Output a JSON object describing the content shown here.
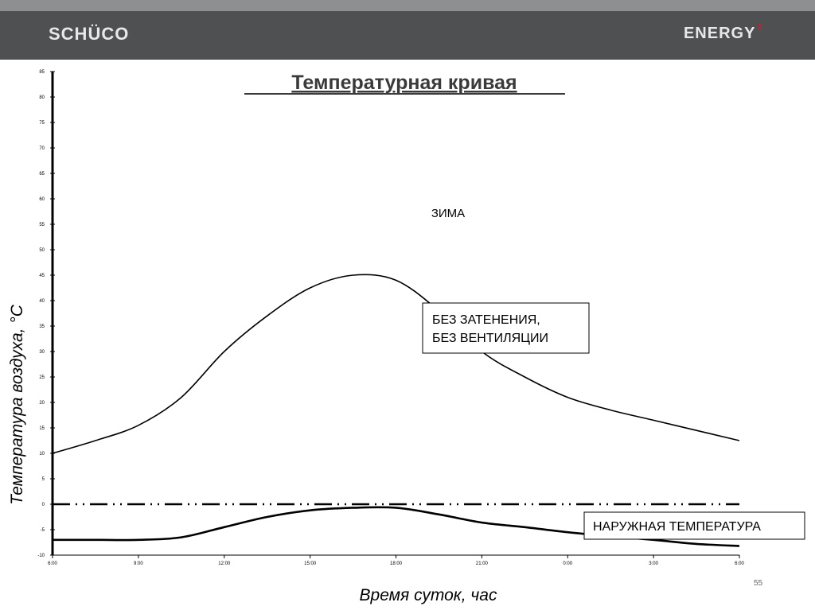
{
  "header": {
    "brand_left": "SCHÜCO",
    "brand_right": "ENERGY",
    "brand_right_sup": "2"
  },
  "page_number": "55",
  "chart_data": {
    "type": "line",
    "title": "Температурная кривая",
    "xlabel": "Время суток, час",
    "ylabel": "Температура воздуха, °C",
    "categories": [
      "6:00",
      "9:00",
      "12:00",
      "15:00",
      "18:00",
      "21:00",
      "0:00",
      "3:00",
      "6:00"
    ],
    "x": [
      0,
      1.5,
      3,
      4.5,
      6,
      7.5,
      9,
      10.5,
      12,
      13.5,
      15,
      16.5,
      18,
      19.5,
      21,
      22.5,
      24
    ],
    "ylim": [
      -10,
      85
    ],
    "yticks": [
      -10,
      -5,
      0,
      5,
      10,
      15,
      20,
      25,
      30,
      35,
      40,
      45,
      50,
      55,
      60,
      65,
      70,
      75,
      80,
      85
    ],
    "ytick_labels": [
      "-10",
      "-5",
      "0",
      "5",
      "10",
      "15",
      "20",
      "25",
      "30",
      "35",
      "40",
      "45",
      "50",
      "55",
      "60",
      "65",
      "70",
      "75",
      "80",
      "85"
    ],
    "grid": false,
    "annotation": "ЗИМА",
    "series": [
      {
        "name": "БЕЗ ЗАТЕНЕНИЯ,\nБЕЗ ВЕНТИЛЯЦИИ",
        "values": [
          10,
          12.5,
          15.5,
          21,
          30,
          37,
          42.5,
          45,
          44,
          38,
          30,
          25,
          21,
          18.5,
          16.5,
          14.5,
          12.5
        ],
        "style": "solid"
      },
      {
        "name": "",
        "values": [
          0,
          0,
          0,
          0,
          0,
          0,
          0,
          0,
          0,
          0,
          0,
          0,
          0,
          0,
          0,
          0,
          0
        ],
        "style": "dash-dot-dot"
      },
      {
        "name": "НАРУЖНАЯ ТЕМПЕРАТУРА",
        "values": [
          -7,
          -7,
          -7,
          -6.5,
          -4.5,
          -2.5,
          -1.2,
          -0.7,
          -0.7,
          -2,
          -3.6,
          -4.5,
          -5.5,
          -6.3,
          -7,
          -7.8,
          -8.2
        ],
        "style": "solid-thick"
      }
    ],
    "colors": {
      "line": "#000000",
      "header": "#4e5052"
    }
  }
}
